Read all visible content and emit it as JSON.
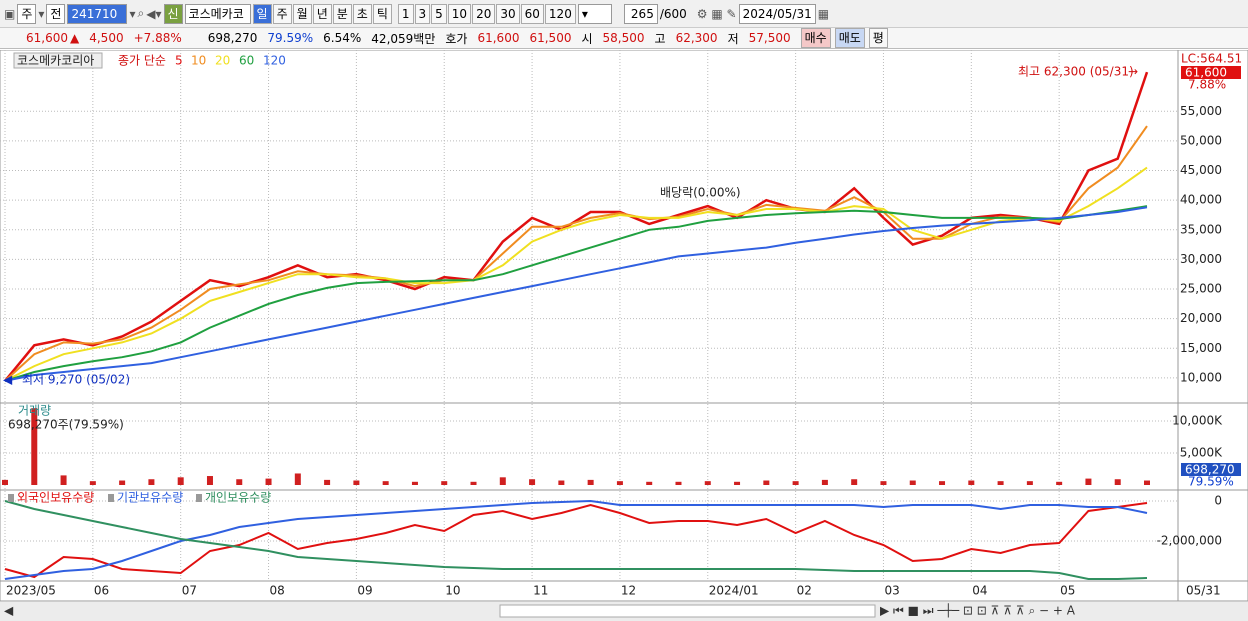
{
  "toolbar": {
    "market": "주",
    "scope": "전",
    "code": "241710",
    "badge": "신",
    "name": "코스메카코",
    "periods": [
      "일",
      "주",
      "월",
      "년",
      "분",
      "초",
      "틱"
    ],
    "intervals": [
      "1",
      "3",
      "5",
      "10",
      "20",
      "30",
      "60",
      "120"
    ],
    "count": "265",
    "max": "/600",
    "date": "2024/05/31"
  },
  "quote": {
    "price": "61,600",
    "change": "4,500",
    "rate": "+7.88%",
    "volume": "698,270",
    "volume_rate": "79.59%",
    "turnover": "6.54%",
    "amount": "42,059백만",
    "bid_label": "호가",
    "ask": "61,600",
    "bid": "61,500",
    "open_label": "시",
    "open": "58,500",
    "high_label": "고",
    "high": "62,300",
    "low_label": "저",
    "low": "57,500",
    "buy": "매수",
    "sell": "매도",
    "avg": "평"
  },
  "chart_data": [
    {
      "type": "line",
      "title": "코스메카코리아",
      "legend_title": "종가 단순",
      "ylim": [
        5770,
        65000
      ],
      "yticks": [
        {
          "value": 10000,
          "label": "10,000"
        },
        {
          "value": 15000,
          "label": "15,000"
        },
        {
          "value": 20000,
          "label": "20,000"
        },
        {
          "value": 25000,
          "label": "25,000"
        },
        {
          "value": 30000,
          "label": "30,000"
        },
        {
          "value": 35000,
          "label": "35,000"
        },
        {
          "value": 40000,
          "label": "40,000"
        },
        {
          "value": 45000,
          "label": "45,000"
        },
        {
          "value": 50000,
          "label": "50,000"
        },
        {
          "value": 55000,
          "label": "55,000"
        }
      ],
      "grid": true,
      "annotations": {
        "high": "최고 62,300 (05/31)",
        "low": "최저 9,270 (05/02)",
        "dividend": "배당락(0.00%)"
      },
      "right_labels": {
        "lc": "LC:564.51",
        "price": "61,600",
        "rate": "7.88%"
      },
      "series": [
        {
          "name": "5",
          "color": "#e01010",
          "values": [
            9500,
            15500,
            16500,
            15500,
            17000,
            19500,
            23000,
            26500,
            25500,
            27000,
            29000,
            27000,
            27500,
            26500,
            25000,
            27000,
            26500,
            33000,
            37000,
            35000,
            38000,
            38000,
            36000,
            37500,
            39000,
            37000,
            40000,
            38500,
            38000,
            42000,
            37000,
            32500,
            34000,
            37000,
            37500,
            37000,
            36000,
            45000,
            47000,
            61600
          ]
        },
        {
          "name": "10",
          "color": "#f08c20",
          "values": [
            9500,
            14000,
            16000,
            15800,
            16500,
            18500,
            21500,
            25000,
            25800,
            26500,
            28000,
            27500,
            27300,
            26800,
            25500,
            26500,
            26500,
            31000,
            35500,
            35500,
            37000,
            37800,
            36800,
            37200,
            38500,
            37500,
            39200,
            38700,
            38200,
            40500,
            38000,
            33500,
            33500,
            36000,
            37200,
            37000,
            36300,
            42000,
            45500,
            52500
          ]
        },
        {
          "name": "20",
          "color": "#f0e020",
          "values": [
            9500,
            12000,
            14000,
            15000,
            16000,
            17500,
            20000,
            23000,
            24500,
            26000,
            27500,
            27500,
            27000,
            26800,
            26000,
            26000,
            26500,
            29000,
            33000,
            35000,
            36500,
            37500,
            37000,
            37000,
            38000,
            37500,
            38500,
            38500,
            38000,
            39000,
            38500,
            35000,
            33500,
            35000,
            36500,
            37000,
            36500,
            39000,
            42000,
            45500
          ]
        },
        {
          "name": "60",
          "color": "#20a040",
          "values": [
            9500,
            11000,
            12000,
            12800,
            13500,
            14500,
            16000,
            18500,
            20500,
            22500,
            24000,
            25200,
            26000,
            26200,
            26300,
            26500,
            26500,
            27500,
            29000,
            30500,
            32000,
            33500,
            35000,
            35500,
            36500,
            37000,
            37500,
            37800,
            38000,
            38200,
            38000,
            37500,
            37000,
            37000,
            37000,
            37000,
            36800,
            37500,
            38200,
            39000
          ]
        },
        {
          "name": "120",
          "color": "#3060e0",
          "values": [
            9500,
            10500,
            11000,
            11500,
            12000,
            12500,
            13500,
            14500,
            15500,
            16500,
            17500,
            18500,
            19500,
            20500,
            21500,
            22500,
            23500,
            24500,
            25500,
            26500,
            27500,
            28500,
            29500,
            30500,
            31000,
            31500,
            32000,
            32800,
            33500,
            34200,
            34800,
            35300,
            35700,
            36000,
            36300,
            36600,
            37000,
            37500,
            38000,
            38800
          ]
        }
      ]
    },
    {
      "type": "bar",
      "title": "거래량",
      "annotation": "698,270주(79.59%)",
      "color": "#d02020",
      "ylim": [
        0,
        12650000
      ],
      "yticks": [
        {
          "value": 10000000,
          "label": "10,000K"
        },
        {
          "value": 5000000,
          "label": "5,000K"
        }
      ],
      "right_labels": {
        "volume": "698,270",
        "rate": "79.59%"
      },
      "values": [
        800000,
        12000000,
        1500000,
        600000,
        700000,
        900000,
        1200000,
        1400000,
        900000,
        1000000,
        1800000,
        800000,
        700000,
        600000,
        500000,
        600000,
        500000,
        1200000,
        900000,
        700000,
        800000,
        600000,
        500000,
        500000,
        600000,
        500000,
        700000,
        600000,
        800000,
        900000,
        600000,
        700000,
        600000,
        700000,
        600000,
        600000,
        500000,
        1000000,
        900000,
        698270
      ]
    },
    {
      "type": "line",
      "ylim": [
        -3950000,
        500000
      ],
      "yticks": [
        0,
        {
          "value": -2000000,
          "label": "-2,000,000"
        }
      ],
      "categories": [
        "2023/05",
        null,
        null,
        "06",
        null,
        null,
        "07",
        null,
        null,
        "08",
        null,
        null,
        "09",
        null,
        null,
        "10",
        null,
        null,
        "11",
        null,
        null,
        "12",
        null,
        null,
        "2024/01",
        null,
        null,
        "02",
        null,
        null,
        "03",
        null,
        null,
        "04",
        null,
        null,
        "05",
        null,
        null,
        null
      ],
      "end_label": "05/31",
      "series": [
        {
          "name": "외국인보유수량",
          "color": "#e01010",
          "values": [
            -3400000,
            -3800000,
            -2800000,
            -2900000,
            -3400000,
            -3500000,
            -3600000,
            -2500000,
            -2200000,
            -1600000,
            -2400000,
            -2100000,
            -1900000,
            -1600000,
            -1200000,
            -1500000,
            -700000,
            -500000,
            -900000,
            -600000,
            -200000,
            -600000,
            -1100000,
            -1000000,
            -1000000,
            -1200000,
            -900000,
            -1600000,
            -1000000,
            -1700000,
            -2200000,
            -3000000,
            -2900000,
            -2400000,
            -2600000,
            -2200000,
            -2100000,
            -500000,
            -300000,
            -100000
          ]
        },
        {
          "name": "기관보유수량",
          "color": "#3060e0",
          "values": [
            -3900000,
            -3700000,
            -3500000,
            -3400000,
            -3000000,
            -2500000,
            -2000000,
            -1700000,
            -1300000,
            -1100000,
            -900000,
            -800000,
            -700000,
            -600000,
            -500000,
            -400000,
            -300000,
            -200000,
            -100000,
            -50000,
            0,
            -200000,
            -200000,
            -200000,
            -200000,
            -200000,
            -200000,
            -200000,
            -200000,
            -200000,
            -300000,
            -200000,
            -200000,
            -200000,
            -400000,
            -200000,
            -200000,
            -300000,
            -300000,
            -600000
          ]
        },
        {
          "name": "개인보유수량",
          "color": "#309060",
          "values": [
            0,
            -400000,
            -700000,
            -1000000,
            -1300000,
            -1600000,
            -1900000,
            -2100000,
            -2300000,
            -2500000,
            -2800000,
            -2900000,
            -3000000,
            -3100000,
            -3200000,
            -3300000,
            -3350000,
            -3400000,
            -3400000,
            -3400000,
            -3400000,
            -3400000,
            -3400000,
            -3400000,
            -3400000,
            -3400000,
            -3400000,
            -3400000,
            -3450000,
            -3500000,
            -3500000,
            -3500000,
            -3500000,
            -3500000,
            -3500000,
            -3500000,
            -3600000,
            -3900000,
            -3900000,
            -3850000
          ]
        }
      ]
    }
  ]
}
